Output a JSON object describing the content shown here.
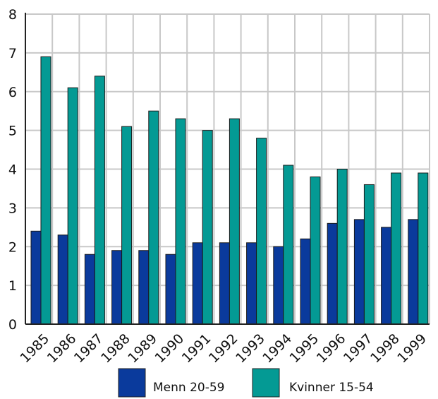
{
  "chart_data": {
    "type": "bar",
    "title": "",
    "xlabel": "",
    "ylabel": "",
    "categories": [
      "1985",
      "1986",
      "1987",
      "1988",
      "1989",
      "1990",
      "1991",
      "1992",
      "1993",
      "1994",
      "1995",
      "1996",
      "1997",
      "1998",
      "1999"
    ],
    "series": [
      {
        "name": "Menn 20-59",
        "color": "#0a3a9c",
        "values": [
          2.4,
          2.3,
          1.8,
          1.9,
          1.9,
          1.8,
          2.1,
          2.1,
          2.1,
          2.0,
          2.2,
          2.6,
          2.7,
          2.5,
          2.7
        ]
      },
      {
        "name": "Kvinner 15-54",
        "color": "#049a94",
        "values": [
          6.9,
          6.1,
          6.4,
          5.1,
          5.5,
          5.3,
          5.0,
          5.3,
          4.8,
          4.1,
          3.8,
          4.0,
          3.6,
          3.9,
          3.9
        ]
      }
    ],
    "ylim": [
      0,
      8
    ],
    "yticks": [
      "0",
      "1",
      "2",
      "3",
      "4",
      "5",
      "6",
      "7",
      "8"
    ],
    "grid": true,
    "legend_position": "bottom"
  }
}
